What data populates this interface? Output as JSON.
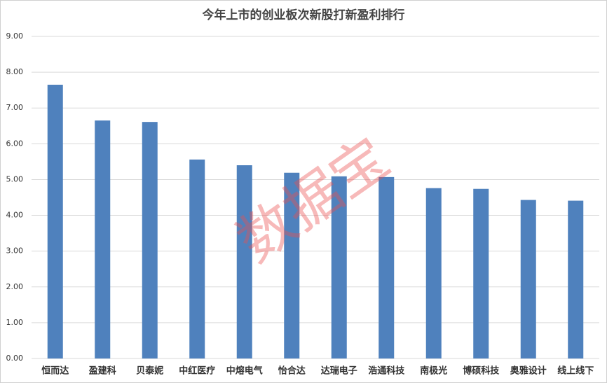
{
  "chart_data": {
    "type": "bar",
    "title": "今年上市的创业板次新股打新盈利排行",
    "categories": [
      "恒而达",
      "盈建科",
      "贝泰妮",
      "中红医疗",
      "中熔电气",
      "怡合达",
      "达瑞电子",
      "浩通科技",
      "南极光",
      "博硕科技",
      "奥雅设计",
      "线上线下"
    ],
    "values": [
      7.65,
      6.65,
      6.61,
      5.56,
      5.4,
      5.19,
      5.09,
      5.07,
      4.76,
      4.74,
      4.43,
      4.41
    ],
    "color": "#4f81bd",
    "ylim": [
      0,
      9
    ],
    "yticks": [
      {
        "value": 0,
        "label": "0.00"
      },
      {
        "value": 1,
        "label": "1.00"
      },
      {
        "value": 2,
        "label": "2.00"
      },
      {
        "value": 3,
        "label": "3.00"
      },
      {
        "value": 4,
        "label": "4.00"
      },
      {
        "value": 5,
        "label": "5.00"
      },
      {
        "value": 6,
        "label": "6.00"
      },
      {
        "value": 7,
        "label": "7.00"
      },
      {
        "value": 8,
        "label": "8.00"
      },
      {
        "value": 9,
        "label": "9.00"
      }
    ],
    "grid": true,
    "watermark": "数据宝"
  }
}
